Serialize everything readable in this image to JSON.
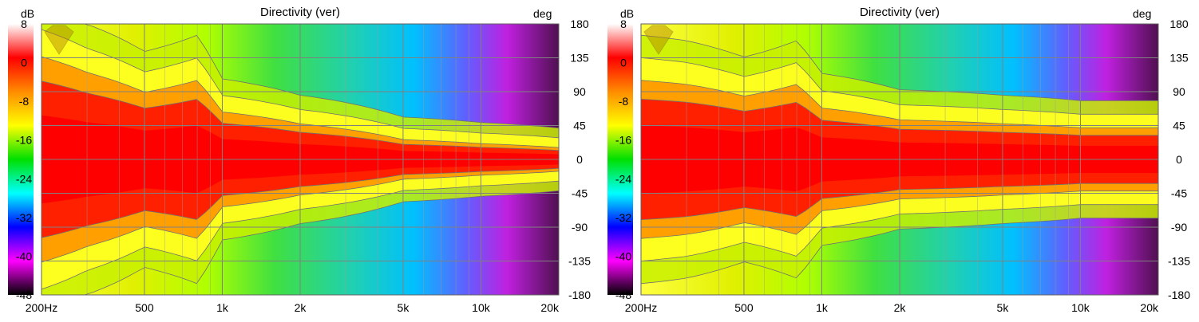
{
  "chart_data": [
    {
      "type": "heatmap",
      "title": "Directivity (ver)",
      "colorbar_unit": "dB",
      "yaxis_unit": "deg",
      "colorbar_ticks": [
        "8",
        "0",
        "-8",
        "-16",
        "-24",
        "-32",
        "-40",
        "-48"
      ],
      "colorbar_range": [
        -48,
        8
      ],
      "yaxis_ticks": [
        "180",
        "135",
        "90",
        "45",
        "0",
        "-45",
        "-90",
        "-135",
        "-180"
      ],
      "ylim": [
        -180,
        180
      ],
      "xaxis_ticks": [
        "200Hz",
        "500",
        "1k",
        "2k",
        "5k",
        "10k",
        "20k"
      ],
      "xaxis_tick_freqs": [
        200,
        500,
        1000,
        2000,
        5000,
        10000,
        20000
      ],
      "xlim_hz": [
        200,
        20000
      ],
      "x_scale": "log",
      "grid": true,
      "colormap": [
        "#ffffff",
        "#ff0000",
        "#ff8c00",
        "#ffff00",
        "#00e000",
        "#00ffff",
        "#0000ff",
        "#ff00ff",
        "#000000"
      ],
      "beam_halfwidth_deg": {
        "freqs_hz": [
          200,
          300,
          500,
          800,
          1000,
          2000,
          5000,
          10000,
          20000
        ],
        "minus6db": [
          130,
          110,
          85,
          100,
          60,
          45,
          25,
          20,
          15
        ]
      }
    },
    {
      "type": "heatmap",
      "title": "Directivity (ver)",
      "colorbar_unit": "dB",
      "yaxis_unit": "deg",
      "colorbar_ticks": [
        "8",
        "0",
        "-8",
        "-16",
        "-24",
        "-32",
        "-40",
        "-48"
      ],
      "colorbar_range": [
        -48,
        8
      ],
      "yaxis_ticks": [
        "180",
        "135",
        "90",
        "45",
        "0",
        "-45",
        "-90",
        "-135",
        "-180"
      ],
      "ylim": [
        -180,
        180
      ],
      "xaxis_ticks": [
        "200Hz",
        "500",
        "1k",
        "2k",
        "5k",
        "10k",
        "20k"
      ],
      "xaxis_tick_freqs": [
        200,
        500,
        1000,
        2000,
        5000,
        10000,
        20000
      ],
      "xlim_hz": [
        200,
        20000
      ],
      "x_scale": "log",
      "grid": true,
      "colormap": [
        "#ffffff",
        "#ff0000",
        "#ff8c00",
        "#ffff00",
        "#00e000",
        "#00ffff",
        "#0000ff",
        "#ff00ff",
        "#000000"
      ],
      "beam_halfwidth_deg": {
        "freqs_hz": [
          200,
          300,
          500,
          800,
          1000,
          2000,
          5000,
          10000,
          20000
        ],
        "minus6db": [
          100,
          95,
          80,
          95,
          65,
          50,
          45,
          40,
          40
        ]
      }
    }
  ]
}
